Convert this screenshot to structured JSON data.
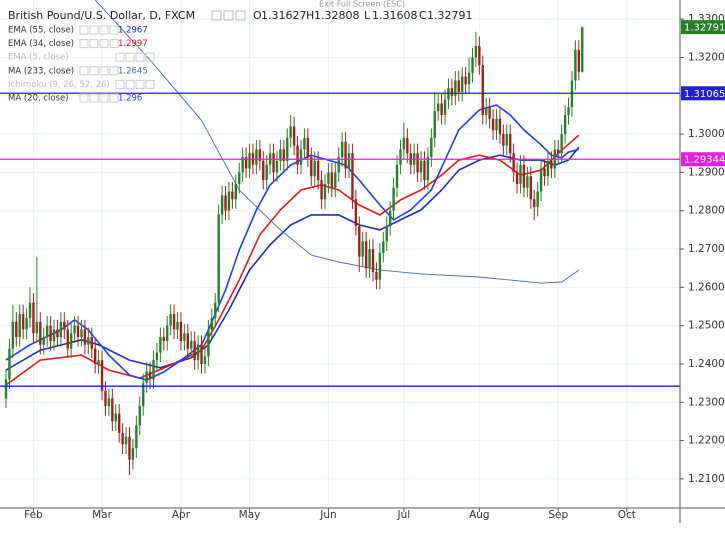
{
  "chart_data": {
    "type": "candlestick",
    "title": "British Pound/U.S. Dollar, D, FXCM",
    "fullscreen_hint": "Exit Full Screen (ESC)",
    "ohlc_labels": [
      "O",
      "H",
      "L",
      "C"
    ],
    "up_color": "#26802a",
    "down_color": "#a51d1d",
    "ylim": [
      1.2024,
      1.335
    ],
    "yticks": [
      {
        "value": 1.21,
        "label": "1.21000"
      },
      {
        "value": 1.22,
        "label": "1.22000"
      },
      {
        "value": 1.23,
        "label": "1.23000"
      },
      {
        "value": 1.24,
        "label": "1.24000"
      },
      {
        "value": 1.25,
        "label": "1.25000"
      },
      {
        "value": 1.26,
        "label": "1.26000"
      },
      {
        "value": 1.27,
        "label": "1.27000"
      },
      {
        "value": 1.28,
        "label": "1.28000"
      },
      {
        "value": 1.29,
        "label": "1.29000"
      },
      {
        "value": 1.3,
        "label": "1.30000"
      },
      {
        "value": 1.31,
        "label": "1.31000"
      },
      {
        "value": 1.32,
        "label": "1.32000"
      },
      {
        "value": 1.33,
        "label": "1.33000"
      }
    ],
    "xlim": [
      -1.75,
      196.5
    ],
    "xticks": [
      {
        "value": 8,
        "label": "Feb"
      },
      {
        "value": 28,
        "label": "Mar"
      },
      {
        "value": 51,
        "label": "Apr"
      },
      {
        "value": 71,
        "label": "May"
      },
      {
        "value": 94,
        "label": "Jun"
      },
      {
        "value": 116,
        "label": "Jul"
      },
      {
        "value": 138,
        "label": "Aug"
      },
      {
        "value": 161,
        "label": "Sep"
      },
      {
        "value": 181,
        "label": "Oct"
      }
    ],
    "grid": true,
    "candles": [
      [
        1.231,
        1.2385,
        1.2285,
        1.236
      ],
      [
        1.236,
        1.2465,
        1.2335,
        1.244
      ],
      [
        1.244,
        1.2555,
        1.2415,
        1.251
      ],
      [
        1.251,
        1.2535,
        1.2445,
        1.247
      ],
      [
        1.247,
        1.2555,
        1.2445,
        1.253
      ],
      [
        1.253,
        1.2555,
        1.2465,
        1.249
      ],
      [
        1.249,
        1.2545,
        1.2465,
        1.252
      ],
      [
        1.252,
        1.26,
        1.2495,
        1.256
      ],
      [
        1.256,
        1.2585,
        1.2455,
        1.248
      ],
      [
        1.248,
        1.268,
        1.2455,
        1.251
      ],
      [
        1.251,
        1.2535,
        1.2425,
        1.245
      ],
      [
        1.245,
        1.2495,
        1.2425,
        1.247
      ],
      [
        1.247,
        1.2525,
        1.2445,
        1.25
      ],
      [
        1.25,
        1.2525,
        1.2435,
        1.246
      ],
      [
        1.246,
        1.2515,
        1.2435,
        1.249
      ],
      [
        1.249,
        1.2515,
        1.2445,
        1.247
      ],
      [
        1.247,
        1.2535,
        1.2445,
        1.251
      ],
      [
        1.251,
        1.2535,
        1.2465,
        1.249
      ],
      [
        1.249,
        1.2515,
        1.2415,
        1.244
      ],
      [
        1.244,
        1.2505,
        1.2415,
        1.248
      ],
      [
        1.248,
        1.2525,
        1.2455,
        1.25
      ],
      [
        1.25,
        1.2525,
        1.2445,
        1.247
      ],
      [
        1.247,
        1.2515,
        1.2445,
        1.249
      ],
      [
        1.249,
        1.2515,
        1.2425,
        1.245
      ],
      [
        1.245,
        1.2495,
        1.2425,
        1.247
      ],
      [
        1.247,
        1.2495,
        1.2415,
        1.244
      ],
      [
        1.244,
        1.2465,
        1.2375,
        1.24
      ],
      [
        1.24,
        1.2435,
        1.2375,
        1.241
      ],
      [
        1.241,
        1.2435,
        1.2305,
        1.233
      ],
      [
        1.233,
        1.2355,
        1.2265,
        1.229
      ],
      [
        1.229,
        1.2335,
        1.2265,
        1.231
      ],
      [
        1.231,
        1.2335,
        1.2225,
        1.225
      ],
      [
        1.225,
        1.2295,
        1.2225,
        1.227
      ],
      [
        1.227,
        1.2295,
        1.2195,
        1.222
      ],
      [
        1.222,
        1.2245,
        1.2165,
        1.219
      ],
      [
        1.219,
        1.2235,
        1.2165,
        1.221
      ],
      [
        1.221,
        1.2235,
        1.211,
        1.215
      ],
      [
        1.215,
        1.2205,
        1.2125,
        1.218
      ],
      [
        1.218,
        1.2265,
        1.2155,
        1.224
      ],
      [
        1.224,
        1.2315,
        1.2215,
        1.229
      ],
      [
        1.229,
        1.2375,
        1.2265,
        1.235
      ],
      [
        1.235,
        1.2405,
        1.2325,
        1.238
      ],
      [
        1.238,
        1.2405,
        1.2335,
        1.236
      ],
      [
        1.236,
        1.2435,
        1.2335,
        1.241
      ],
      [
        1.241,
        1.2455,
        1.2385,
        1.243
      ],
      [
        1.243,
        1.2495,
        1.2405,
        1.247
      ],
      [
        1.247,
        1.2495,
        1.2435,
        1.246
      ],
      [
        1.246,
        1.2525,
        1.2435,
        1.25
      ],
      [
        1.25,
        1.2555,
        1.2475,
        1.253
      ],
      [
        1.253,
        1.2555,
        1.2465,
        1.249
      ],
      [
        1.249,
        1.2535,
        1.2465,
        1.251
      ],
      [
        1.251,
        1.2535,
        1.2435,
        1.246
      ],
      [
        1.246,
        1.2505,
        1.2435,
        1.248
      ],
      [
        1.248,
        1.2505,
        1.2415,
        1.244
      ],
      [
        1.244,
        1.2485,
        1.2415,
        1.246
      ],
      [
        1.246,
        1.2485,
        1.2385,
        1.241
      ],
      [
        1.241,
        1.2475,
        1.2385,
        1.245
      ],
      [
        1.245,
        1.2475,
        1.2375,
        1.24
      ],
      [
        1.24,
        1.2445,
        1.2375,
        1.242
      ],
      [
        1.242,
        1.2515,
        1.2395,
        1.249
      ],
      [
        1.249,
        1.2545,
        1.2465,
        1.252
      ],
      [
        1.252,
        1.2585,
        1.2495,
        1.256
      ],
      [
        1.256,
        1.2815,
        1.2535,
        1.279
      ],
      [
        1.279,
        1.2865,
        1.2765,
        1.284
      ],
      [
        1.284,
        1.2865,
        1.2775,
        1.28
      ],
      [
        1.28,
        1.2875,
        1.2775,
        1.285
      ],
      [
        1.285,
        1.2875,
        1.2805,
        1.283
      ],
      [
        1.283,
        1.2895,
        1.2805,
        1.287
      ],
      [
        1.287,
        1.2925,
        1.2845,
        1.29
      ],
      [
        1.29,
        1.2965,
        1.2875,
        1.294
      ],
      [
        1.294,
        1.2965,
        1.2885,
        1.291
      ],
      [
        1.291,
        1.2975,
        1.2885,
        1.295
      ],
      [
        1.295,
        1.2975,
        1.2895,
        1.292
      ],
      [
        1.292,
        1.2985,
        1.2895,
        1.296
      ],
      [
        1.296,
        1.2985,
        1.2905,
        1.293
      ],
      [
        1.293,
        1.2955,
        1.2855,
        1.288
      ],
      [
        1.288,
        1.2945,
        1.2855,
        1.292
      ],
      [
        1.292,
        1.2975,
        1.2895,
        1.295
      ],
      [
        1.295,
        1.2975,
        1.2875,
        1.29
      ],
      [
        1.29,
        1.2955,
        1.2875,
        1.293
      ],
      [
        1.293,
        1.2985,
        1.2905,
        1.296
      ],
      [
        1.296,
        1.2985,
        1.2905,
        1.293
      ],
      [
        1.293,
        1.3015,
        1.2905,
        1.299
      ],
      [
        1.299,
        1.305,
        1.2965,
        1.302
      ],
      [
        1.302,
        1.3045,
        1.2945,
        1.297
      ],
      [
        1.297,
        1.2995,
        1.2895,
        1.292
      ],
      [
        1.292,
        1.2985,
        1.2895,
        1.296
      ],
      [
        1.296,
        1.3015,
        1.2935,
        1.299
      ],
      [
        1.299,
        1.3015,
        1.2915,
        1.294
      ],
      [
        1.294,
        1.2965,
        1.2865,
        1.289
      ],
      [
        1.289,
        1.2955,
        1.2865,
        1.293
      ],
      [
        1.293,
        1.2955,
        1.2855,
        1.288
      ],
      [
        1.288,
        1.2905,
        1.2805,
        1.283
      ],
      [
        1.283,
        1.2895,
        1.2805,
        1.287
      ],
      [
        1.287,
        1.2925,
        1.2845,
        1.29
      ],
      [
        1.29,
        1.2925,
        1.2835,
        1.286
      ],
      [
        1.286,
        1.2925,
        1.2835,
        1.29
      ],
      [
        1.29,
        1.2965,
        1.2875,
        1.294
      ],
      [
        1.294,
        1.3005,
        1.2915,
        1.298
      ],
      [
        1.298,
        1.3005,
        1.2885,
        1.291
      ],
      [
        1.291,
        1.2975,
        1.2885,
        1.295
      ],
      [
        1.295,
        1.2975,
        1.2805,
        1.283
      ],
      [
        1.283,
        1.2855,
        1.2735,
        1.276
      ],
      [
        1.276,
        1.2785,
        1.264,
        1.268
      ],
      [
        1.268,
        1.2745,
        1.2655,
        1.272
      ],
      [
        1.272,
        1.2745,
        1.2625,
        1.265
      ],
      [
        1.265,
        1.2725,
        1.2625,
        1.27
      ],
      [
        1.27,
        1.2725,
        1.2615,
        1.264
      ],
      [
        1.264,
        1.2665,
        1.2595,
        1.262
      ],
      [
        1.262,
        1.2715,
        1.2595,
        1.269
      ],
      [
        1.269,
        1.2745,
        1.2665,
        1.272
      ],
      [
        1.272,
        1.2785,
        1.2695,
        1.276
      ],
      [
        1.276,
        1.2825,
        1.2735,
        1.28
      ],
      [
        1.28,
        1.2885,
        1.2775,
        1.286
      ],
      [
        1.286,
        1.2945,
        1.2835,
        1.292
      ],
      [
        1.292,
        1.2985,
        1.2895,
        1.296
      ],
      [
        1.296,
        1.303,
        1.2935,
        1.299
      ],
      [
        1.299,
        1.3015,
        1.2925,
        1.295
      ],
      [
        1.295,
        1.2975,
        1.2895,
        1.292
      ],
      [
        1.292,
        1.2975,
        1.2895,
        1.295
      ],
      [
        1.295,
        1.2975,
        1.2875,
        1.29
      ],
      [
        1.29,
        1.2955,
        1.2875,
        1.293
      ],
      [
        1.293,
        1.2955,
        1.2855,
        1.288
      ],
      [
        1.288,
        1.2965,
        1.2855,
        1.294
      ],
      [
        1.294,
        1.3015,
        1.2915,
        1.299
      ],
      [
        1.299,
        1.311,
        1.2965,
        1.306
      ],
      [
        1.306,
        1.3105,
        1.3035,
        1.308
      ],
      [
        1.308,
        1.3105,
        1.3025,
        1.305
      ],
      [
        1.305,
        1.3115,
        1.3025,
        1.309
      ],
      [
        1.309,
        1.3145,
        1.3065,
        1.312
      ],
      [
        1.312,
        1.3145,
        1.3075,
        1.31
      ],
      [
        1.31,
        1.3165,
        1.3075,
        1.314
      ],
      [
        1.314,
        1.3165,
        1.3085,
        1.311
      ],
      [
        1.311,
        1.3175,
        1.3085,
        1.315
      ],
      [
        1.315,
        1.3175,
        1.3105,
        1.313
      ],
      [
        1.313,
        1.32,
        1.3105,
        1.316
      ],
      [
        1.316,
        1.3225,
        1.3135,
        1.32
      ],
      [
        1.32,
        1.3267,
        1.3175,
        1.323
      ],
      [
        1.323,
        1.3255,
        1.3155,
        1.318
      ],
      [
        1.318,
        1.3205,
        1.3025,
        1.305
      ],
      [
        1.305,
        1.3095,
        1.3025,
        1.307
      ],
      [
        1.307,
        1.3095,
        1.3015,
        1.304
      ],
      [
        1.304,
        1.3065,
        1.2985,
        1.301
      ],
      [
        1.301,
        1.3065,
        1.2985,
        1.304
      ],
      [
        1.304,
        1.3065,
        1.2975,
        1.3
      ],
      [
        1.3,
        1.3025,
        1.2945,
        1.297
      ],
      [
        1.297,
        1.3025,
        1.2945,
        1.3
      ],
      [
        1.3,
        1.3025,
        1.2925,
        1.295
      ],
      [
        1.295,
        1.2975,
        1.2875,
        1.29
      ],
      [
        1.29,
        1.2925,
        1.2845,
        1.287
      ],
      [
        1.287,
        1.2945,
        1.2845,
        1.292
      ],
      [
        1.292,
        1.2945,
        1.2835,
        1.286
      ],
      [
        1.286,
        1.2915,
        1.2835,
        1.289
      ],
      [
        1.289,
        1.2915,
        1.2805,
        1.283
      ],
      [
        1.283,
        1.2855,
        1.2775,
        1.281
      ],
      [
        1.281,
        1.2875,
        1.2785,
        1.285
      ],
      [
        1.285,
        1.2935,
        1.2825,
        1.291
      ],
      [
        1.291,
        1.2935,
        1.2865,
        1.289
      ],
      [
        1.289,
        1.2955,
        1.2865,
        1.293
      ],
      [
        1.293,
        1.2955,
        1.2885,
        1.291
      ],
      [
        1.291,
        1.2985,
        1.2885,
        1.296
      ],
      [
        1.296,
        1.2985,
        1.2925,
        1.295
      ],
      [
        1.295,
        1.3025,
        1.2925,
        1.3
      ],
      [
        1.3,
        1.3075,
        1.2975,
        1.305
      ],
      [
        1.305,
        1.3095,
        1.3025,
        1.307
      ],
      [
        1.307,
        1.3165,
        1.3045,
        1.314
      ],
      [
        1.314,
        1.3245,
        1.3115,
        1.322
      ],
      [
        1.322,
        1.3245,
        1.314,
        1.3163
      ],
      [
        1.31627,
        1.32808,
        1.31608,
        1.32791
      ]
    ],
    "series": [
      {
        "name": "EMA (55, close)",
        "color": "#1d2fa8",
        "width": 1.6,
        "last": 1.2967,
        "visible": true,
        "x": [
          0,
          10,
          22,
          27,
          36,
          45,
          54,
          59,
          65,
          71,
          77,
          83,
          89,
          97,
          103,
          109,
          115,
          121,
          127,
          132,
          138,
          144,
          150,
          156,
          160,
          164,
          167
        ],
        "values": [
          1.2384,
          1.2436,
          1.2463,
          1.245,
          1.241,
          1.239,
          1.2416,
          1.245,
          1.2541,
          1.2645,
          1.2711,
          1.2763,
          1.2789,
          1.2789,
          1.2763,
          1.275,
          1.2776,
          1.2802,
          1.2854,
          1.2906,
          1.2932,
          1.2945,
          1.2932,
          1.2932,
          1.2919,
          1.2932,
          1.2966
        ]
      },
      {
        "name": "EMA (34, close)",
        "color": "#e01b1b",
        "width": 1.6,
        "last": 1.2997,
        "visible": true,
        "x": [
          0,
          10,
          22,
          30,
          39,
          48,
          57,
          62,
          68,
          74,
          80,
          86,
          92,
          97,
          103,
          109,
          115,
          121,
          127,
          132,
          138,
          144,
          150,
          156,
          162,
          167
        ],
        "values": [
          1.2345,
          1.241,
          1.2423,
          1.2384,
          1.2363,
          1.2397,
          1.2436,
          1.2515,
          1.2619,
          1.2737,
          1.2802,
          1.2854,
          1.2867,
          1.2854,
          1.2815,
          1.2789,
          1.2828,
          1.2854,
          1.2893,
          1.2932,
          1.2945,
          1.2932,
          1.2893,
          1.2906,
          1.2958,
          1.2997
        ]
      },
      {
        "name": "EMA (5, close)",
        "color": "#9aa0c8",
        "visible": false
      },
      {
        "name": "MA (233, close)",
        "color": "#4a6aa8",
        "width": 0.9,
        "last": 1.2645,
        "visible": true,
        "x": [
          26,
          42,
          57,
          68,
          80,
          89,
          97,
          109,
          121,
          138,
          156,
          162,
          167
        ],
        "values": [
          1.335,
          1.3193,
          1.3036,
          1.2854,
          1.275,
          1.2684,
          1.2666,
          1.2645,
          1.2635,
          1.2627,
          1.2611,
          1.2614,
          1.2645
        ]
      },
      {
        "name": "Ichimoku (9, 26, 52, 26)",
        "color": "#9aa0c8",
        "visible": false
      },
      {
        "name": "MA (20, close)",
        "color": "#1f3fe8",
        "width": 1.6,
        "last": 1.296,
        "visible": true,
        "x": [
          0,
          7,
          16,
          20,
          24,
          30,
          36,
          41,
          46,
          52,
          57,
          59,
          64,
          68,
          73,
          77,
          83,
          89,
          94,
          99,
          103,
          109,
          113,
          118,
          124,
          128,
          132,
          138,
          143,
          147,
          151,
          156,
          159,
          162,
          164,
          167
        ],
        "values": [
          1.241,
          1.245,
          1.2489,
          1.2515,
          1.2489,
          1.2423,
          1.2371,
          1.2358,
          1.2379,
          1.2416,
          1.245,
          1.2489,
          1.2593,
          1.2697,
          1.2802,
          1.2867,
          1.2919,
          1.2945,
          1.2932,
          1.2919,
          1.288,
          1.2815,
          1.2776,
          1.2802,
          1.2854,
          1.2932,
          1.3011,
          1.3063,
          1.3076,
          1.305,
          1.3011,
          1.2972,
          1.2945,
          1.2938,
          1.2953,
          1.296
        ]
      }
    ],
    "hlines": [
      {
        "value": 1.31065,
        "color": "#1f1fd6",
        "show_label": true
      },
      {
        "value": 1.29344,
        "color": "#e020e0",
        "show_label": true
      },
      {
        "value": 1.2342,
        "color": "#1f1fd6",
        "show_label": false
      }
    ]
  }
}
